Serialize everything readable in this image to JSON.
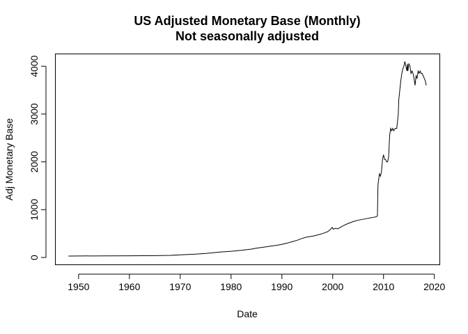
{
  "chart_data": {
    "type": "line",
    "title": "US Adjusted Monetary Base (Monthly)",
    "subtitle": "Not seasonally adjusted",
    "xlabel": "Date",
    "ylabel": "Adj Monetary Base",
    "xlim": [
      1945.5,
      2021
    ],
    "ylim": [
      -145,
      4250
    ],
    "x_ticks": [
      1950,
      1960,
      1970,
      1980,
      1990,
      2000,
      2010,
      2020
    ],
    "y_ticks": [
      0,
      1000,
      2000,
      3000,
      4000
    ],
    "grid": false,
    "series": [
      {
        "color": "#000000",
        "x": [
          1948.0,
          1950.0,
          1955.0,
          1960.0,
          1965.0,
          1968.0,
          1970.0,
          1973.0,
          1975.0,
          1978.0,
          1980.0,
          1982.0,
          1984.0,
          1985.0,
          1986.0,
          1987.0,
          1988.0,
          1989.0,
          1990.0,
          1991.0,
          1992.0,
          1993.0,
          1994.0,
          1995.0,
          1996.0,
          1997.0,
          1998.0,
          1999.0,
          1999.5,
          1999.9,
          2000.1,
          2000.5,
          2001.0,
          2002.0,
          2003.0,
          2004.0,
          2005.0,
          2006.0,
          2007.0,
          2007.5,
          2008.0,
          2008.5,
          2008.7,
          2008.8,
          2008.9,
          2009.0,
          2009.2,
          2009.4,
          2009.6,
          2009.8,
          2010.0,
          2010.2,
          2010.4,
          2010.6,
          2010.8,
          2011.0,
          2011.2,
          2011.4,
          2011.6,
          2011.8,
          2012.0,
          2012.3,
          2012.6,
          2012.9,
          2013.0,
          2013.2,
          2013.4,
          2013.6,
          2013.8,
          2014.0,
          2014.2,
          2014.4,
          2014.6,
          2014.7,
          2014.8,
          2014.9,
          2015.0,
          2015.2,
          2015.4,
          2015.6,
          2015.8,
          2016.0,
          2016.2,
          2016.4,
          2016.6,
          2016.8,
          2017.0,
          2017.2,
          2017.4,
          2017.6,
          2017.8,
          2018.0,
          2018.2,
          2018.4
        ],
        "values": [
          30,
          32,
          33,
          35,
          38,
          45,
          55,
          70,
          85,
          115,
          130,
          150,
          175,
          195,
          210,
          225,
          240,
          255,
          275,
          300,
          330,
          360,
          400,
          430,
          445,
          470,
          500,
          540,
          580,
          630,
          590,
          610,
          600,
          660,
          710,
          750,
          780,
          800,
          820,
          830,
          840,
          850,
          860,
          870,
          1500,
          1600,
          1750,
          1700,
          1800,
          2050,
          2150,
          2050,
          2050,
          2000,
          2000,
          2100,
          2550,
          2700,
          2650,
          2700,
          2650,
          2700,
          2700,
          3000,
          3300,
          3500,
          3700,
          3850,
          3950,
          4000,
          4100,
          4000,
          3900,
          4050,
          3900,
          4000,
          4050,
          4000,
          3850,
          3900,
          3850,
          3750,
          3600,
          3800,
          3750,
          3900,
          3850,
          3900,
          3850,
          3850,
          3800,
          3750,
          3700,
          3600
        ]
      }
    ]
  }
}
